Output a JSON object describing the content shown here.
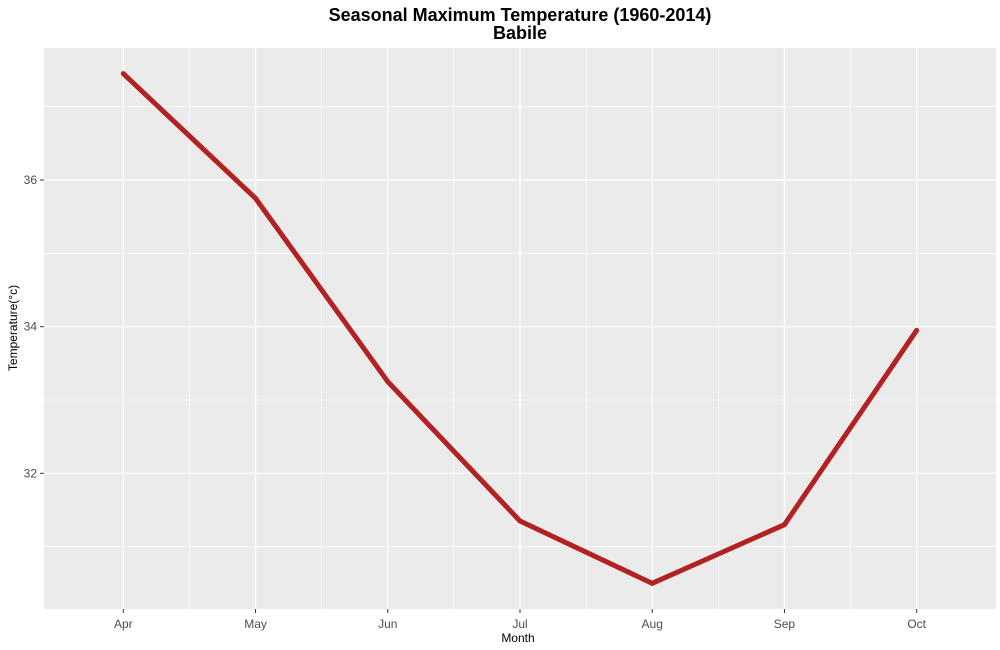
{
  "chart_data": {
    "type": "line",
    "title": "Seasonal Maximum Temperature (1960-2014)",
    "subtitle": "Babile",
    "xlabel": "Month",
    "ylabel": "Temperature(°c)",
    "categories": [
      "Apr",
      "May",
      "Jun",
      "Jul",
      "Aug",
      "Sep",
      "Oct"
    ],
    "values": [
      37.45,
      35.75,
      33.25,
      31.35,
      30.5,
      31.3,
      33.95
    ],
    "y_ticks": [
      32,
      34,
      36
    ],
    "y_tick_labels": [
      "32",
      "34",
      "36"
    ],
    "ylim": [
      30.15,
      37.8
    ],
    "grid": true,
    "line_color": "#b22222",
    "panel_color": "#ebebeb",
    "grid_color": "#ffffff"
  }
}
